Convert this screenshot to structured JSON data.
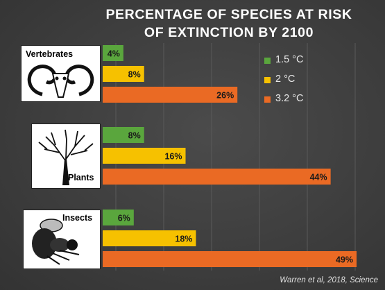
{
  "chart_data": {
    "type": "bar",
    "orientation": "horizontal",
    "title": "PERCENTAGE OF SPECIES AT RISK OF EXTINCTION BY 2100",
    "title_lines": [
      "PERCENTAGE OF SPECIES AT RISK",
      "OF EXTINCTION BY 2100"
    ],
    "categories": [
      "Vertebrates",
      "Plants",
      "Insects"
    ],
    "series": [
      {
        "name": "1.5 °C",
        "values": [
          4,
          8,
          6
        ],
        "color": "#5aa63d"
      },
      {
        "name": "2 °C",
        "values": [
          8,
          16,
          18
        ],
        "color": "#f6c100"
      },
      {
        "name": "3.2 °C",
        "values": [
          26,
          44,
          49
        ],
        "color": "#ea6a24"
      }
    ],
    "value_format": "percent",
    "xlim": [
      0,
      50
    ],
    "grid": true,
    "legend_position": "top-right",
    "category_icons": [
      "ram-skull-icon",
      "tree-icon",
      "bee-icon"
    ],
    "source": "Warren et al, 2018, Science",
    "background": "#404040"
  }
}
